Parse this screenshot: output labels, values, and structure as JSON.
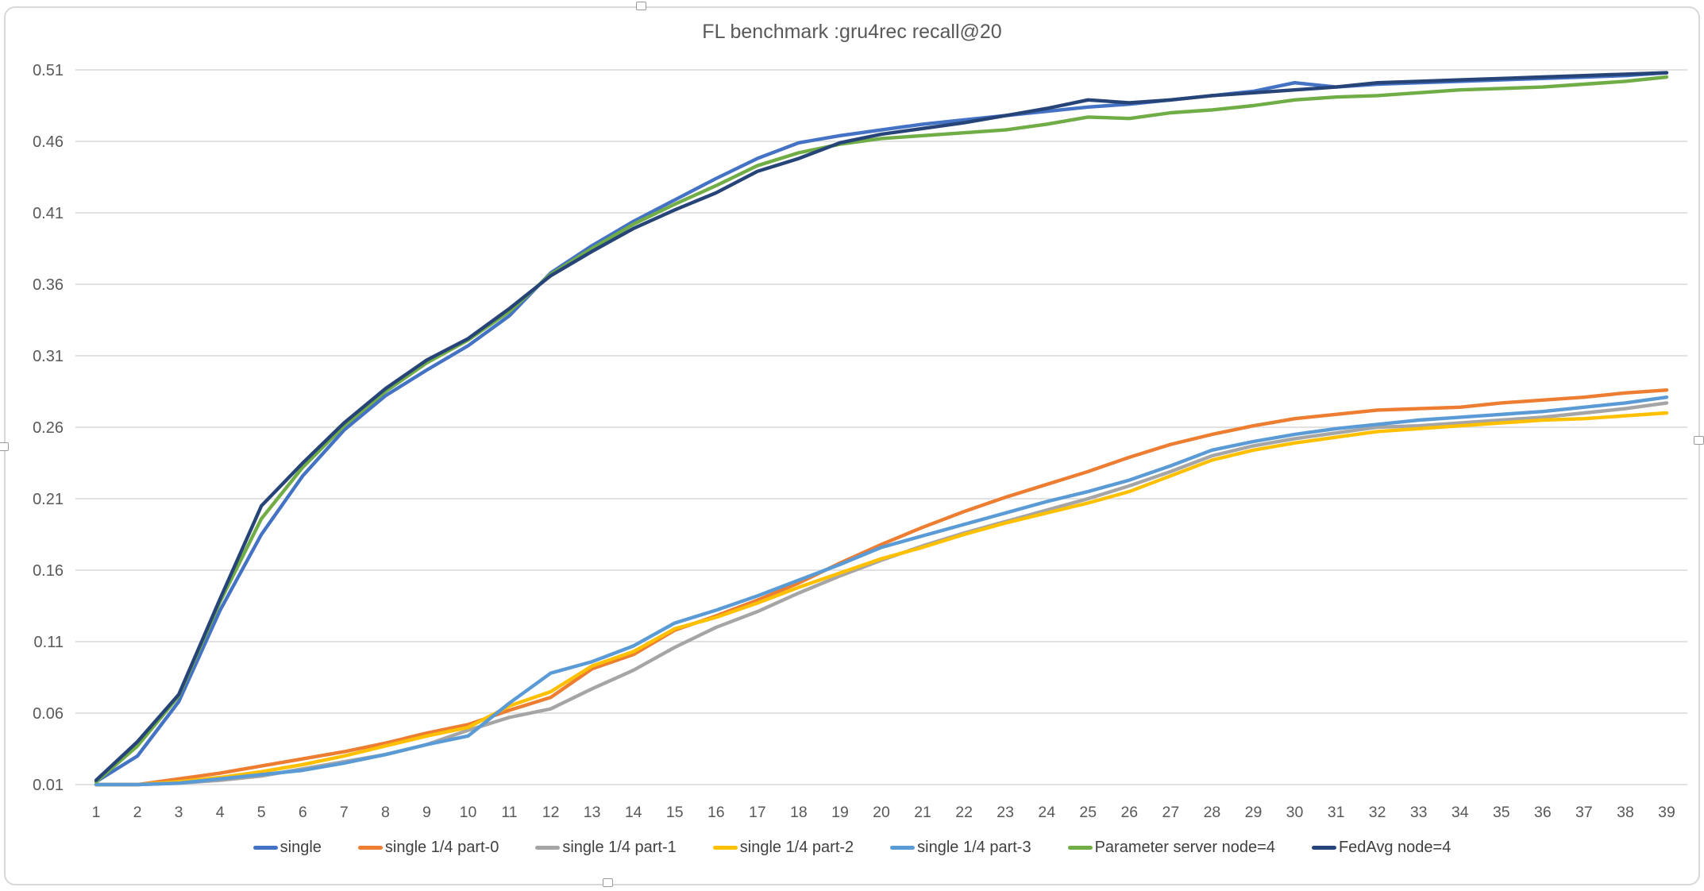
{
  "title": "FL benchmark :gru4rec recall@20",
  "chart_data": {
    "type": "line",
    "title": "FL benchmark :gru4rec recall@20",
    "xlabel": "",
    "ylabel": "",
    "grid": true,
    "grid_color": "#d9d9d9",
    "tick_label_color": "#595959",
    "legend_position": "bottom",
    "x": [
      1,
      2,
      3,
      4,
      5,
      6,
      7,
      8,
      9,
      10,
      11,
      12,
      13,
      14,
      15,
      16,
      17,
      18,
      19,
      20,
      21,
      22,
      23,
      24,
      25,
      26,
      27,
      28,
      29,
      30,
      31,
      32,
      33,
      34,
      35,
      36,
      37,
      38,
      39
    ],
    "y_axis": {
      "min": 0.01,
      "max": 0.51,
      "step": 0.05,
      "tick_labels": [
        "0.01",
        "0.06",
        "0.11",
        "0.16",
        "0.21",
        "0.26",
        "0.31",
        "0.36",
        "0.41",
        "0.46",
        "0.51"
      ]
    },
    "series": [
      {
        "name": "single",
        "color": "#4472C4",
        "values": [
          0.012,
          0.03,
          0.068,
          0.132,
          0.185,
          0.226,
          0.258,
          0.282,
          0.3,
          0.317,
          0.338,
          0.368,
          0.387,
          0.404,
          0.419,
          0.434,
          0.448,
          0.459,
          0.464,
          0.468,
          0.472,
          0.475,
          0.478,
          0.481,
          0.484,
          0.486,
          0.489,
          0.492,
          0.495,
          0.501,
          0.498,
          0.5,
          0.501,
          0.502,
          0.503,
          0.504,
          0.505,
          0.506,
          0.508
        ]
      },
      {
        "name": "single 1/4 part-0",
        "color": "#ED7D31",
        "values": [
          0.01,
          0.01,
          0.014,
          0.018,
          0.023,
          0.028,
          0.033,
          0.039,
          0.046,
          0.052,
          0.062,
          0.071,
          0.091,
          0.101,
          0.118,
          0.128,
          0.139,
          0.151,
          0.165,
          0.178,
          0.19,
          0.201,
          0.211,
          0.22,
          0.229,
          0.239,
          0.248,
          0.255,
          0.261,
          0.266,
          0.269,
          0.272,
          0.273,
          0.274,
          0.277,
          0.279,
          0.281,
          0.284,
          0.286
        ]
      },
      {
        "name": "single 1/4 part-1",
        "color": "#A5A5A5",
        "values": [
          0.01,
          0.01,
          0.011,
          0.013,
          0.016,
          0.021,
          0.026,
          0.031,
          0.038,
          0.048,
          0.057,
          0.063,
          0.077,
          0.09,
          0.106,
          0.12,
          0.131,
          0.144,
          0.156,
          0.167,
          0.177,
          0.186,
          0.194,
          0.202,
          0.21,
          0.219,
          0.229,
          0.24,
          0.247,
          0.252,
          0.256,
          0.26,
          0.261,
          0.263,
          0.265,
          0.267,
          0.27,
          0.273,
          0.277
        ]
      },
      {
        "name": "single 1/4 part-2",
        "color": "#FFC000",
        "values": [
          0.01,
          0.01,
          0.012,
          0.015,
          0.019,
          0.024,
          0.03,
          0.037,
          0.044,
          0.05,
          0.065,
          0.075,
          0.093,
          0.103,
          0.119,
          0.127,
          0.137,
          0.148,
          0.158,
          0.168,
          0.176,
          0.185,
          0.193,
          0.2,
          0.207,
          0.215,
          0.226,
          0.237,
          0.244,
          0.249,
          0.253,
          0.257,
          0.259,
          0.261,
          0.263,
          0.265,
          0.266,
          0.268,
          0.27
        ]
      },
      {
        "name": "single 1/4 part-3",
        "color": "#5B9BD5",
        "values": [
          0.01,
          0.01,
          0.011,
          0.014,
          0.017,
          0.02,
          0.025,
          0.031,
          0.038,
          0.044,
          0.067,
          0.088,
          0.096,
          0.107,
          0.123,
          0.132,
          0.142,
          0.153,
          0.164,
          0.176,
          0.184,
          0.192,
          0.2,
          0.208,
          0.215,
          0.223,
          0.233,
          0.244,
          0.25,
          0.255,
          0.259,
          0.262,
          0.265,
          0.267,
          0.269,
          0.271,
          0.274,
          0.277,
          0.281
        ]
      },
      {
        "name": "Parameter server node=4",
        "color": "#70AD47",
        "values": [
          0.012,
          0.037,
          0.072,
          0.138,
          0.196,
          0.232,
          0.261,
          0.285,
          0.305,
          0.321,
          0.341,
          0.367,
          0.385,
          0.402,
          0.416,
          0.429,
          0.443,
          0.452,
          0.458,
          0.462,
          0.464,
          0.466,
          0.468,
          0.472,
          0.477,
          0.476,
          0.48,
          0.482,
          0.485,
          0.489,
          0.491,
          0.492,
          0.494,
          0.496,
          0.497,
          0.498,
          0.5,
          0.502,
          0.505
        ]
      },
      {
        "name": "FedAvg node=4",
        "color": "#264478",
        "values": [
          0.013,
          0.04,
          0.073,
          0.14,
          0.205,
          0.235,
          0.263,
          0.287,
          0.307,
          0.322,
          0.343,
          0.366,
          0.383,
          0.399,
          0.412,
          0.424,
          0.439,
          0.448,
          0.459,
          0.465,
          0.469,
          0.473,
          0.478,
          0.483,
          0.489,
          0.487,
          0.489,
          0.492,
          0.494,
          0.496,
          0.498,
          0.501,
          0.502,
          0.503,
          0.504,
          0.505,
          0.506,
          0.507,
          0.508
        ]
      }
    ]
  }
}
